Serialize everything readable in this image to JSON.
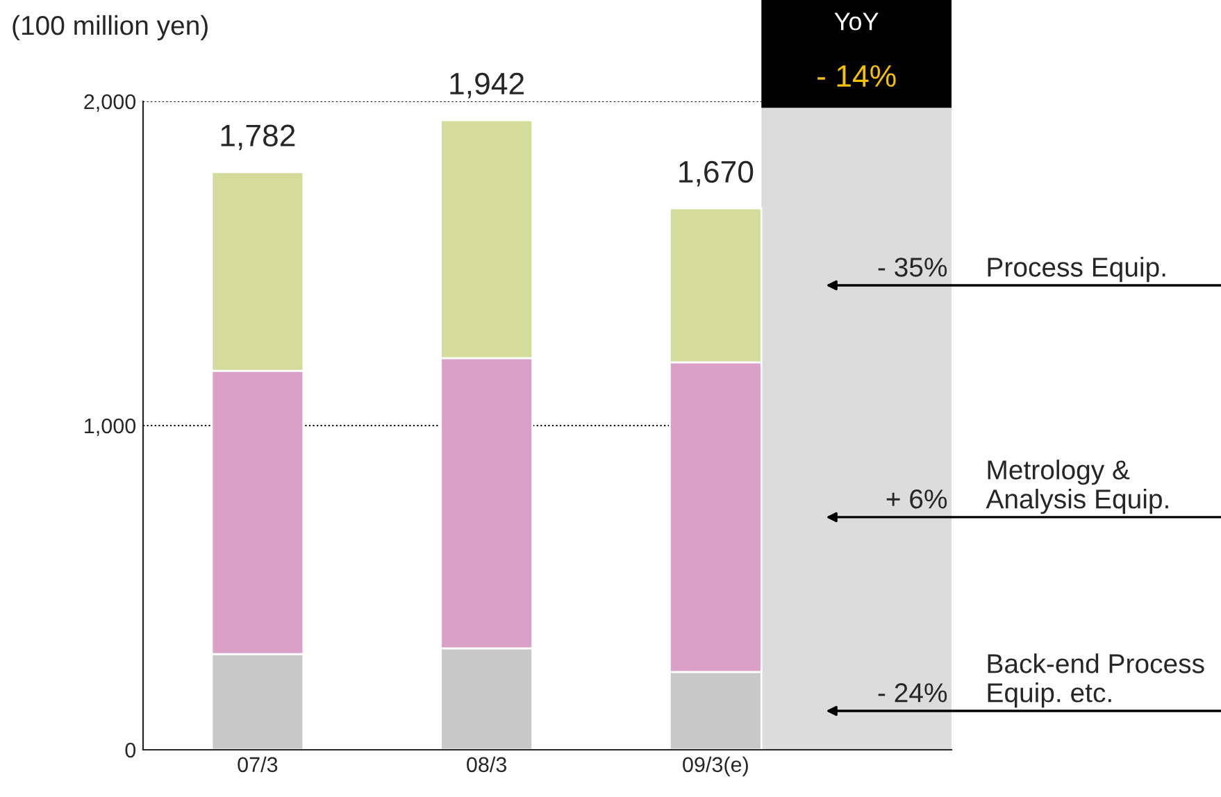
{
  "chart_data": {
    "type": "bar",
    "stacked": true,
    "ylabel": "(100 million yen)",
    "categories": [
      "07/3",
      "08/3",
      "09/3(e)"
    ],
    "series": [
      {
        "name": "Back-end Process Equip. etc.",
        "color": "#c8c8c8",
        "values": [
          295,
          313,
          240
        ]
      },
      {
        "name": "Metrology & Analysis Equip.",
        "color": "#dba0c8",
        "values": [
          874,
          895,
          955
        ]
      },
      {
        "name": "Process Equip.",
        "color": "#d4dc9c",
        "values": [
          613,
          734,
          475
        ]
      }
    ],
    "totals": [
      "1,782",
      "1,942",
      "1,670"
    ],
    "ylim": [
      0,
      2000
    ],
    "yticks": [
      {
        "value": 0,
        "label": "0"
      },
      {
        "value": 1000,
        "label": "1,000"
      },
      {
        "value": 2000,
        "label": "2,000"
      }
    ],
    "grid": "y",
    "legend": false,
    "annotations": [
      "YoY",
      "- 14%",
      "- 24%",
      "+ 6%",
      "- 35%"
    ]
  }
}
